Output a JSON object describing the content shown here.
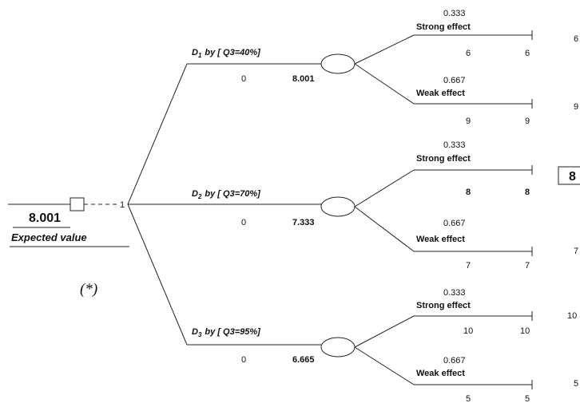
{
  "root": {
    "expected_value": "8.001",
    "expected_value_label": "Expected value",
    "choice_number": "1",
    "footnote_mark": "(*)"
  },
  "decisions": [
    {
      "sub": "1",
      "label_suffix": "by [ Q3=40%]",
      "cost": "0",
      "value": "8.001",
      "outcomes": [
        {
          "prob": "0.333",
          "label": "Strong effect",
          "payoff": "6",
          "total": "6",
          "right_value": "6"
        },
        {
          "prob": "0.667",
          "label": "Weak effect",
          "payoff": "9",
          "total": "9",
          "right_value": "9"
        }
      ]
    },
    {
      "sub": "2",
      "label_suffix": "by [ Q3=70%]",
      "cost": "0",
      "value": "7.333",
      "outcomes": [
        {
          "prob": "0.333",
          "label": "Strong effect",
          "payoff": "8",
          "total": "8",
          "right_value": "8"
        },
        {
          "prob": "0.667",
          "label": "Weak effect",
          "payoff": "7",
          "total": "7",
          "right_value": "7"
        }
      ]
    },
    {
      "sub": "3",
      "label_suffix": "by [ Q3=95%]",
      "cost": "0",
      "value": "6.665",
      "outcomes": [
        {
          "prob": "0.333",
          "label": "Strong effect",
          "payoff": "10",
          "total": "10",
          "right_value": "10"
        },
        {
          "prob": "0.667",
          "label": "Weak effect",
          "payoff": "5",
          "total": "5",
          "right_value": "5"
        }
      ]
    }
  ],
  "decision_prefix": "D"
}
